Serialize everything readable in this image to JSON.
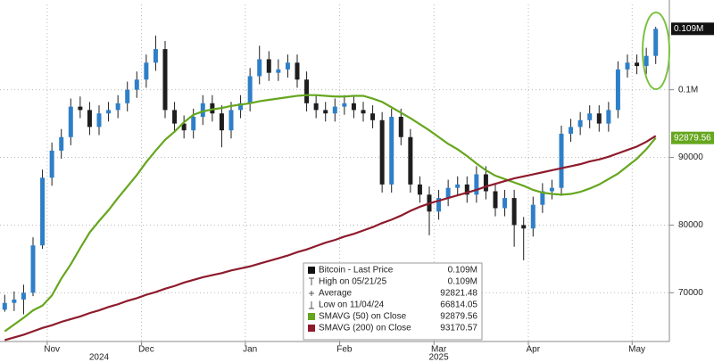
{
  "chart_data": {
    "type": "candlestick",
    "categories": [
      null,
      null,
      null,
      null,
      null,
      "Nov",
      null,
      null,
      null,
      null,
      null,
      null,
      null,
      null,
      null,
      "Dec",
      null,
      null,
      null,
      null,
      null,
      null,
      null,
      null,
      null,
      null,
      "Jan",
      null,
      null,
      null,
      null,
      null,
      null,
      null,
      null,
      null,
      "Feb",
      null,
      null,
      null,
      null,
      null,
      null,
      null,
      null,
      null,
      "Mar",
      null,
      null,
      null,
      null,
      null,
      null,
      null,
      null,
      null,
      "Apr",
      null,
      null,
      null,
      null,
      null,
      null,
      null,
      null,
      null,
      null,
      "May",
      null,
      null
    ],
    "year_categories": [
      null,
      null,
      null,
      null,
      null,
      null,
      null,
      null,
      null,
      null,
      "2024",
      null,
      null,
      null,
      null,
      null,
      null,
      null,
      null,
      null,
      null,
      null,
      null,
      null,
      null,
      null,
      null,
      null,
      null,
      null,
      null,
      null,
      null,
      null,
      null,
      null,
      null,
      null,
      null,
      null,
      null,
      null,
      null,
      null,
      null,
      null,
      "2025",
      null,
      null,
      null,
      null,
      null,
      null,
      null,
      null,
      null,
      null,
      null,
      null,
      null,
      null,
      null,
      null,
      null,
      null,
      null,
      null,
      null,
      null,
      null
    ],
    "series": [
      {
        "name": "Bitcoin - Last Price",
        "type": "candlestick",
        "up_color": "#2f7fc8",
        "down_color": "#1e1e1e",
        "last_label": "0.109M",
        "label_color": "#111111",
        "open": [
          67500,
          68500,
          69000,
          70000,
          77000,
          87000,
          91000,
          93000,
          97500,
          97000,
          94500,
          96500,
          97000,
          98000,
          100000,
          101500,
          104000,
          106000,
          97000,
          95000,
          94000,
          96000,
          98000,
          96500,
          94000,
          97000,
          98000,
          102000,
          104500,
          102500,
          103000,
          104000,
          101500,
          98000,
          97000,
          96500,
          97500,
          98000,
          97000,
          96500,
          95500,
          86000,
          96000,
          93000,
          86000,
          84500,
          82000,
          84000,
          85500,
          86000,
          84500,
          87500,
          85000,
          82500,
          84000,
          80000,
          79500,
          83000,
          85000,
          85500,
          93500,
          94500,
          95500,
          96500,
          95000,
          97000,
          103000,
          104000,
          103500,
          105000
        ],
        "high": [
          69700,
          70200,
          71200,
          78200,
          88200,
          92200,
          94200,
          98700,
          99000,
          98200,
          97700,
          98200,
          99200,
          101200,
          102700,
          105200,
          108000,
          107200,
          98200,
          96200,
          97200,
          99200,
          99200,
          97700,
          98200,
          99200,
          103200,
          106500,
          105700,
          104500,
          105200,
          105200,
          102700,
          99200,
          98200,
          98700,
          99200,
          99200,
          98200,
          97700,
          96700,
          97200,
          97200,
          94200,
          87200,
          85700,
          85200,
          86700,
          87200,
          87200,
          88700,
          88700,
          86200,
          85200,
          85200,
          81200,
          84200,
          86200,
          86700,
          94700,
          95700,
          96700,
          97700,
          97700,
          98200,
          104200,
          105200,
          105200,
          106200,
          109300
        ],
        "low": [
          67200,
          67300,
          66814.05,
          69500,
          76500,
          85800,
          89800,
          91800,
          95800,
          93300,
          93300,
          95300,
          95800,
          96800,
          98800,
          100300,
          102800,
          95800,
          93800,
          92800,
          92800,
          94800,
          95300,
          91500,
          92800,
          95800,
          96800,
          100800,
          101300,
          101300,
          101800,
          100300,
          96800,
          95800,
          95300,
          95300,
          96300,
          95800,
          95300,
          94300,
          84800,
          84800,
          91800,
          84800,
          83300,
          78500,
          80800,
          82800,
          84300,
          83300,
          83300,
          83800,
          81300,
          81300,
          76800,
          74800,
          78300,
          81800,
          83800,
          84300,
          92300,
          93300,
          94300,
          93800,
          93800,
          95800,
          101800,
          102300,
          102300,
          103800
        ],
        "close": [
          68500,
          69000,
          70000,
          77000,
          87000,
          91000,
          93000,
          97500,
          97000,
          94500,
          96500,
          97000,
          98000,
          100000,
          101500,
          104000,
          106000,
          97000,
          95000,
          94000,
          96000,
          98000,
          96500,
          94000,
          97000,
          98000,
          102000,
          104500,
          102500,
          103000,
          104000,
          101500,
          98000,
          97000,
          96500,
          97500,
          98000,
          97000,
          96500,
          95500,
          86000,
          96000,
          93000,
          86000,
          84500,
          82000,
          84000,
          85500,
          86000,
          84500,
          87500,
          85000,
          82500,
          84000,
          80000,
          79500,
          83000,
          85000,
          85500,
          93500,
          94500,
          95500,
          96500,
          95000,
          97000,
          103000,
          104000,
          103500,
          105000,
          109000
        ]
      },
      {
        "name": "SMAVG (50) on Close",
        "type": "line",
        "color": "#66a61e",
        "label_color": "#66a61e",
        "values": [
          64300,
          65300,
          66300,
          67400,
          68100,
          69600,
          72100,
          74200,
          76600,
          78900,
          80600,
          82200,
          84000,
          85700,
          87400,
          89300,
          91000,
          92600,
          93800,
          95200,
          96300,
          96800,
          97100,
          97300,
          97600,
          97800,
          98000,
          98300,
          98500,
          98700,
          98900,
          99100,
          99200,
          99200,
          99100,
          99000,
          99000,
          99100,
          99100,
          98700,
          98200,
          97400,
          96600,
          95800,
          94900,
          94000,
          93000,
          92000,
          91200,
          90200,
          89100,
          88100,
          87300,
          86800,
          86300,
          85800,
          85200,
          84800,
          84600,
          84500,
          84600,
          84900,
          85400,
          86000,
          86800,
          87600,
          88700,
          89800,
          91200,
          92879.56
        ]
      },
      {
        "name": "SMAVG (200) on Close",
        "type": "line",
        "color": "#8e1b2c",
        "values": [
          63000,
          63400,
          63800,
          64300,
          64800,
          65200,
          65700,
          66100,
          66500,
          67000,
          67400,
          67900,
          68300,
          68800,
          69200,
          69700,
          70100,
          70600,
          71000,
          71500,
          71900,
          72300,
          72600,
          72900,
          73300,
          73600,
          73900,
          74300,
          74700,
          75100,
          75500,
          76000,
          76400,
          76900,
          77400,
          77800,
          78300,
          78700,
          79200,
          79700,
          80300,
          80800,
          81400,
          82100,
          82700,
          83200,
          83600,
          84000,
          84400,
          84800,
          85200,
          85700,
          86100,
          86500,
          86900,
          87200,
          87500,
          87800,
          88100,
          88400,
          88700,
          89000,
          89400,
          89700,
          90100,
          90600,
          91100,
          91600,
          92300,
          93170.57
        ]
      }
    ],
    "legend_stats": [
      {
        "name": "High on 05/21/25",
        "label": "0.109M"
      },
      {
        "name": "Average",
        "value": 92821.48
      },
      {
        "name": "Low on 11/04/24",
        "value": 66814.05
      }
    ],
    "ylim": [
      62800,
      112600
    ],
    "yticks": [
      70000,
      80000,
      90000,
      {
        "value": 100000,
        "label": "0.1M"
      }
    ],
    "grid": true
  }
}
